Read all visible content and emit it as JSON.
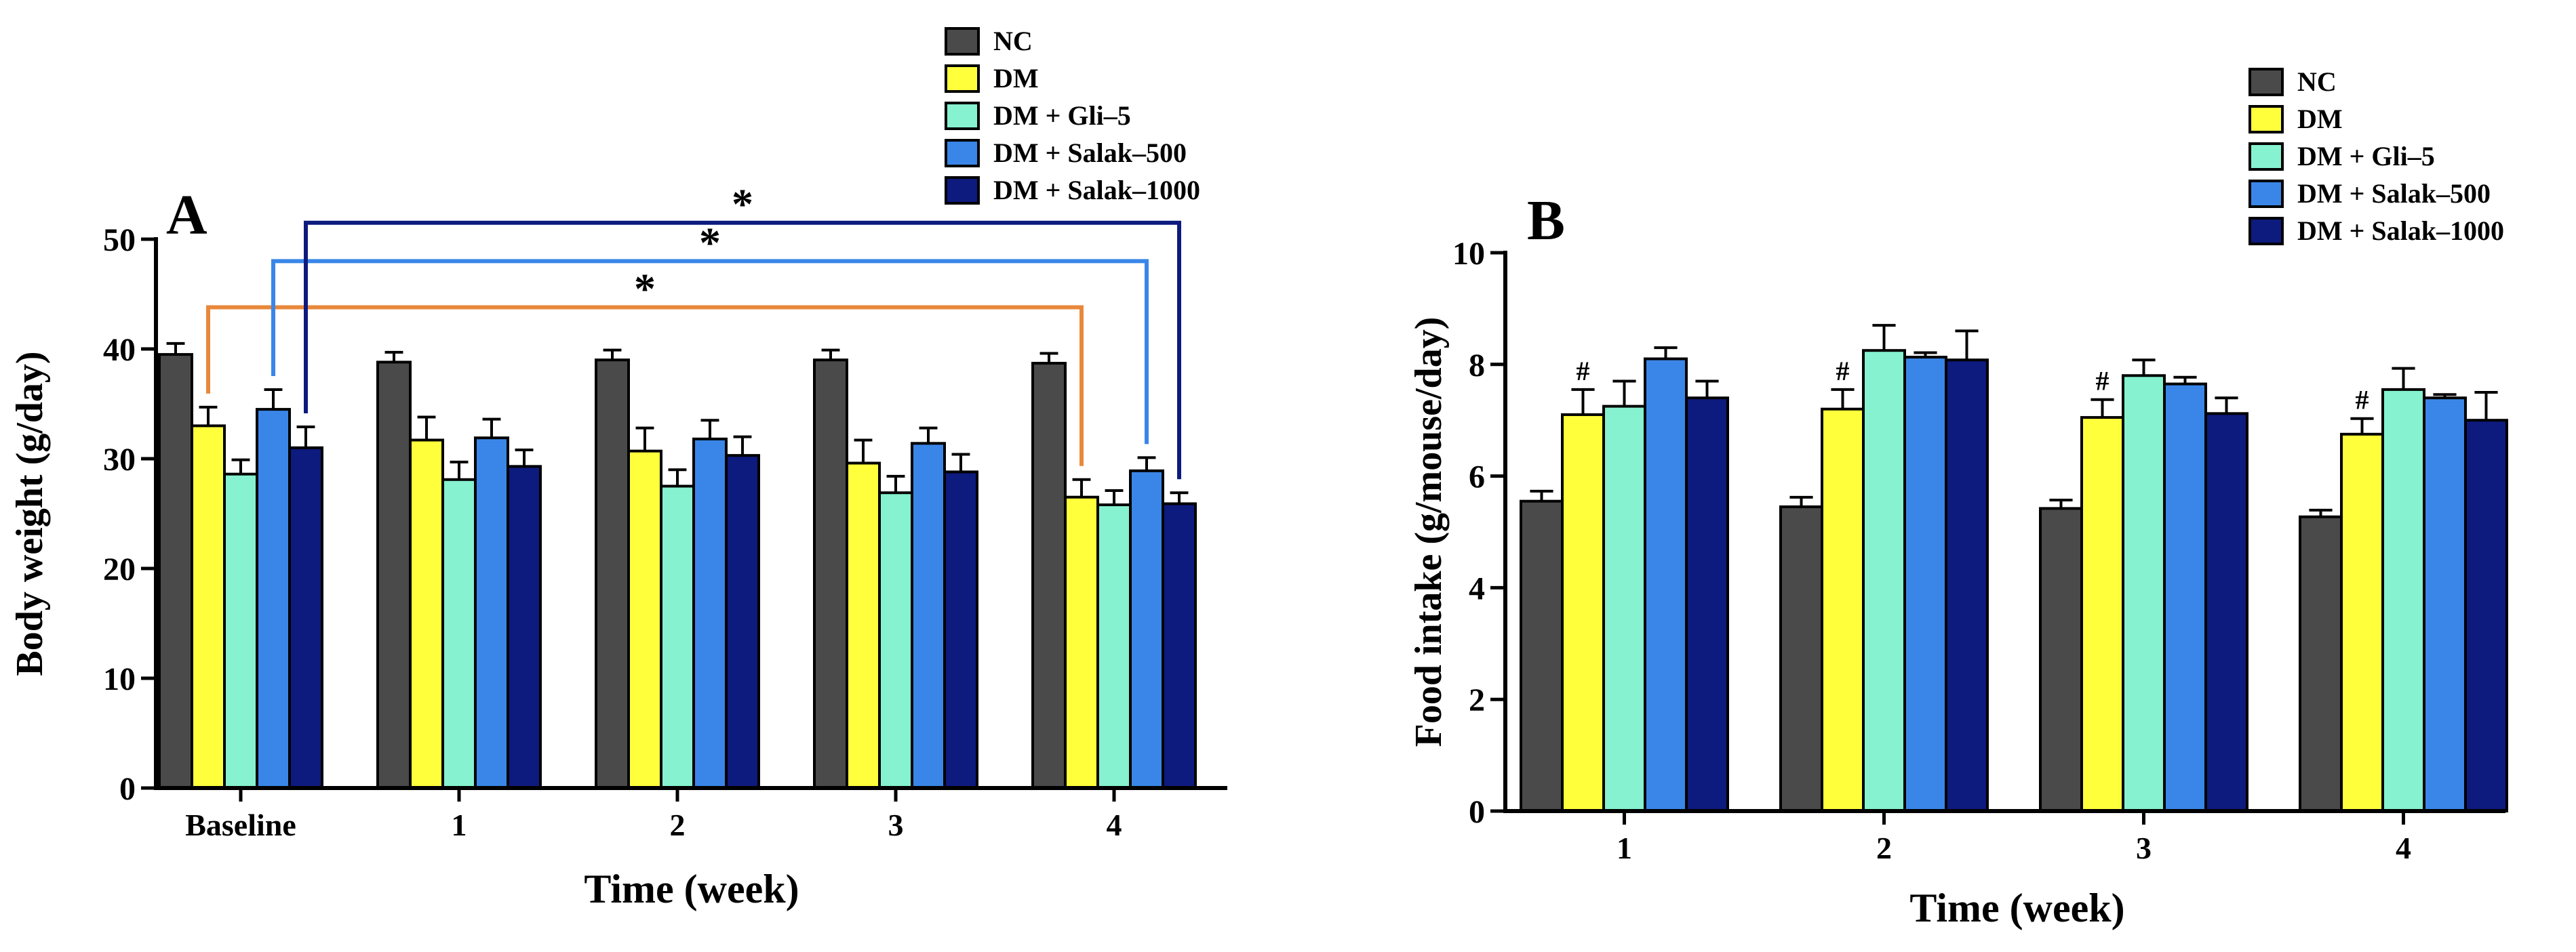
{
  "colors": {
    "NC": "#4a4a4a",
    "DM": "#ffff3c",
    "DM + Gli–5": "#86f2cf",
    "DM + Salak–500": "#3a86e8",
    "DM + Salak–1000": "#0d1a7e",
    "bracket_orange": "#e8883a",
    "bracket_lightblue": "#3a86e8",
    "bracket_darkblue": "#0d1a7e"
  },
  "chart_data": [
    {
      "type": "bar",
      "panel_label": "A",
      "xlabel": "Time (week)",
      "ylabel": "Body weight (g/day)",
      "categories": [
        "Baseline",
        "1",
        "2",
        "3",
        "4"
      ],
      "ylim": [
        0,
        50
      ],
      "yticks": [
        "0",
        "10",
        "20",
        "30",
        "40",
        "50"
      ],
      "legend_position": "top-center",
      "series": [
        {
          "name": "NC",
          "values": [
            39.5,
            38.8,
            39.0,
            39.0,
            38.7
          ],
          "errors": [
            1.0,
            0.9,
            0.9,
            0.9,
            0.9
          ]
        },
        {
          "name": "DM",
          "values": [
            33.0,
            31.7,
            30.7,
            29.6,
            26.5
          ],
          "errors": [
            1.7,
            2.1,
            2.1,
            2.1,
            1.6
          ]
        },
        {
          "name": "DM + Gli–5",
          "values": [
            28.6,
            28.1,
            27.5,
            26.9,
            25.8
          ],
          "errors": [
            1.3,
            1.6,
            1.5,
            1.5,
            1.3
          ]
        },
        {
          "name": "DM + Salak–500",
          "values": [
            34.5,
            31.9,
            31.8,
            31.4,
            28.9
          ],
          "errors": [
            1.8,
            1.7,
            1.7,
            1.4,
            1.2
          ]
        },
        {
          "name": "DM + Salak–1000",
          "values": [
            31.0,
            29.3,
            30.3,
            28.8,
            25.9
          ],
          "errors": [
            1.9,
            1.5,
            1.7,
            1.6,
            1.0
          ]
        }
      ],
      "annotations": [
        {
          "text": "*",
          "from_group": 0,
          "from_series": 1,
          "to_group": 4,
          "to_series": 1,
          "level": 43.8,
          "color": "bracket_orange"
        },
        {
          "text": "*",
          "from_group": 0,
          "from_series": 3,
          "to_group": 4,
          "to_series": 3,
          "level": 48.0,
          "color": "bracket_lightblue"
        },
        {
          "text": "*",
          "from_group": 0,
          "from_series": 4,
          "to_group": 4,
          "to_series": 4,
          "level": 51.5,
          "color": "bracket_darkblue"
        }
      ]
    },
    {
      "type": "bar",
      "panel_label": "B",
      "xlabel": "Time (week)",
      "ylabel": "Food intake (g/mouse/day)",
      "categories": [
        "1",
        "2",
        "3",
        "4"
      ],
      "ylim": [
        0,
        10
      ],
      "yticks": [
        "0",
        "2",
        "4",
        "6",
        "8",
        "10"
      ],
      "legend_position": "top-right",
      "series": [
        {
          "name": "NC",
          "values": [
            5.55,
            5.45,
            5.42,
            5.27
          ],
          "errors": [
            0.18,
            0.17,
            0.15,
            0.12
          ]
        },
        {
          "name": "DM",
          "values": [
            7.1,
            7.2,
            7.05,
            6.75
          ],
          "errors": [
            0.45,
            0.35,
            0.32,
            0.28
          ]
        },
        {
          "name": "DM + Gli–5",
          "values": [
            7.25,
            8.25,
            7.8,
            7.55
          ],
          "errors": [
            0.45,
            0.45,
            0.28,
            0.38
          ]
        },
        {
          "name": "DM + Salak–500",
          "values": [
            8.1,
            8.13,
            7.65,
            7.4
          ],
          "errors": [
            0.2,
            0.08,
            0.12,
            0.06
          ]
        },
        {
          "name": "DM + Salak–1000",
          "values": [
            7.4,
            8.08,
            7.12,
            7.0
          ],
          "errors": [
            0.3,
            0.52,
            0.28,
            0.5
          ]
        }
      ],
      "annotations": [
        {
          "text": "#",
          "group": 0,
          "series": 1
        },
        {
          "text": "#",
          "group": 1,
          "series": 1
        },
        {
          "text": "#",
          "group": 2,
          "series": 1
        },
        {
          "text": "#",
          "group": 3,
          "series": 1
        }
      ]
    }
  ]
}
